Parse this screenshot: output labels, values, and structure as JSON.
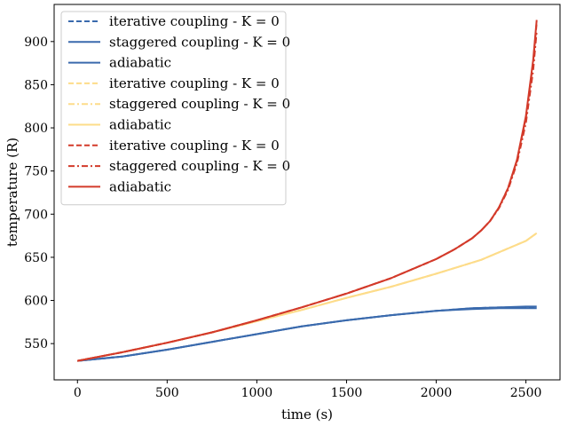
{
  "chart_data": {
    "type": "line",
    "xlabel": "time (s)",
    "ylabel": "temperature (R)",
    "xlim": [
      -130,
      2690
    ],
    "ylim": [
      508,
      943
    ],
    "xticks": [
      0,
      500,
      1000,
      1500,
      2000,
      2500
    ],
    "yticks": [
      550,
      600,
      650,
      700,
      750,
      800,
      850,
      900
    ],
    "legend_position": "upper-left",
    "grid": false,
    "series": [
      {
        "name": "iterative coupling - K = 0",
        "color": "#3a6aad",
        "dash": "dashed",
        "x": [
          0,
          250,
          500,
          750,
          1000,
          1250,
          1500,
          1750,
          2000,
          2200,
          2350,
          2500,
          2560
        ],
        "y": [
          530,
          535,
          543,
          552,
          561,
          570,
          577,
          583,
          588,
          591,
          592,
          592,
          592
        ]
      },
      {
        "name": "staggered coupling - K = 0",
        "color": "#3a6aad",
        "dash": "solid",
        "x": [
          0,
          250,
          500,
          750,
          1000,
          1250,
          1500,
          1750,
          2000,
          2200,
          2350,
          2500,
          2560
        ],
        "y": [
          530,
          535,
          543,
          552,
          561,
          570,
          577,
          583,
          588,
          590,
          591,
          591,
          591
        ]
      },
      {
        "name": "adiabatic",
        "color": "#3a6aad",
        "dash": "solid",
        "x": [
          0,
          250,
          500,
          750,
          1000,
          1250,
          1500,
          1750,
          2000,
          2200,
          2350,
          2500,
          2560
        ],
        "y": [
          530,
          535,
          543,
          552,
          561,
          570,
          577,
          583,
          588,
          591,
          592,
          593,
          593
        ]
      },
      {
        "name": "iterative coupling - K = 0",
        "color": "#fddc8a",
        "dash": "dashed",
        "x": [
          0,
          250,
          500,
          750,
          1000,
          1250,
          1500,
          1750,
          2000,
          2250,
          2500,
          2560
        ],
        "y": [
          530,
          540,
          551,
          563,
          576,
          589,
          603,
          616,
          631,
          647,
          669,
          678
        ]
      },
      {
        "name": "staggered coupling - K = 0",
        "color": "#fddc8a",
        "dash": "dashdot",
        "x": [
          0,
          250,
          500,
          750,
          1000,
          1250,
          1500,
          1750,
          2000,
          2250,
          2500,
          2560
        ],
        "y": [
          530,
          540,
          551,
          563,
          576,
          589,
          603,
          616,
          631,
          647,
          669,
          678
        ]
      },
      {
        "name": "adiabatic",
        "color": "#fddc8a",
        "dash": "solid",
        "x": [
          0,
          250,
          500,
          750,
          1000,
          1250,
          1500,
          1750,
          2000,
          2250,
          2500,
          2560
        ],
        "y": [
          530,
          540,
          551,
          563,
          576,
          589,
          603,
          616,
          631,
          647,
          669,
          678
        ]
      },
      {
        "name": "iterative coupling - K = 0",
        "color": "#d33a2a",
        "dash": "dashed",
        "x": [
          0,
          250,
          500,
          750,
          1000,
          1250,
          1500,
          1750,
          2000,
          2100,
          2200,
          2250,
          2300,
          2350,
          2400,
          2450,
          2500,
          2540,
          2560
        ],
        "y": [
          530,
          540,
          551,
          563,
          577,
          592,
          608,
          626,
          648,
          659,
          672,
          681,
          692,
          708,
          730,
          762,
          812,
          875,
          922
        ]
      },
      {
        "name": "staggered coupling - K = 0",
        "color": "#d33a2a",
        "dash": "dashdot",
        "x": [
          0,
          250,
          500,
          750,
          1000,
          1250,
          1500,
          1750,
          2000,
          2100,
          2200,
          2250,
          2300,
          2350,
          2400,
          2450,
          2500,
          2540,
          2560
        ],
        "y": [
          530,
          540,
          551,
          563,
          577,
          592,
          608,
          626,
          648,
          659,
          672,
          681,
          692,
          707,
          728,
          759,
          806,
          866,
          912
        ]
      },
      {
        "name": "adiabatic",
        "color": "#d33a2a",
        "dash": "solid",
        "x": [
          0,
          250,
          500,
          750,
          1000,
          1250,
          1500,
          1750,
          2000,
          2100,
          2200,
          2250,
          2300,
          2350,
          2400,
          2450,
          2500,
          2540,
          2560
        ],
        "y": [
          530,
          540,
          551,
          563,
          577,
          592,
          608,
          626,
          648,
          659,
          672,
          681,
          692,
          708,
          730,
          763,
          814,
          878,
          925
        ]
      }
    ]
  }
}
